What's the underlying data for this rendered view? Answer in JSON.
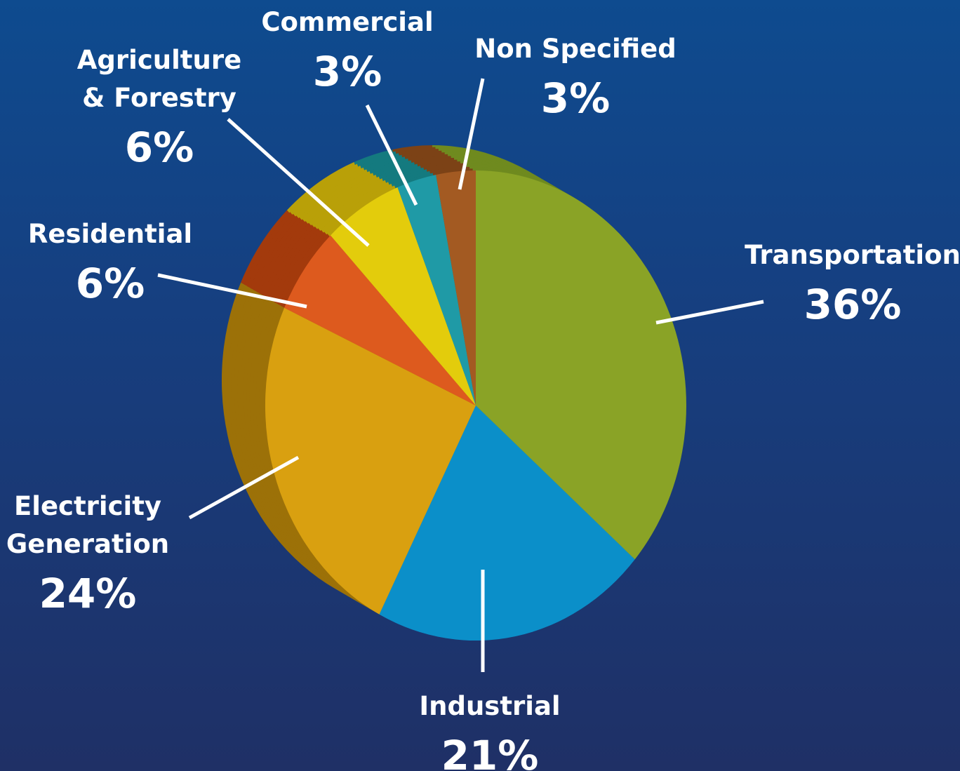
{
  "chart_data": {
    "type": "pie",
    "title": "",
    "slices": [
      {
        "label": "Transportation",
        "pct_label": "36%",
        "value": 36,
        "color": "#8aa326",
        "side": "#6f8a1f"
      },
      {
        "label": "Industrial",
        "pct_label": "21%",
        "value": 21,
        "color": "#0b8fc9",
        "side": "#0a72a3"
      },
      {
        "label": "Electricity Generation",
        "lines": [
          "Electricity",
          "Generation"
        ],
        "pct_label": "24%",
        "value": 24,
        "color": "#d9a010",
        "side": "#9c7108"
      },
      {
        "label": "Residential",
        "pct_label": "6%",
        "value": 6,
        "color": "#dd5a1e",
        "side": "#a33a0c"
      },
      {
        "label": "Agriculture & Forestry",
        "lines": [
          "Agriculture",
          "& Forestry"
        ],
        "pct_label": "6%",
        "value": 6,
        "color": "#e3cc0c",
        "side": "#b9a008"
      },
      {
        "label": "Commercial",
        "pct_label": "3%",
        "value": 3,
        "color": "#1f9aa6",
        "side": "#147a7f"
      },
      {
        "label": "Non Specified",
        "pct_label": "3%",
        "value": 3,
        "color": "#a35a22",
        "side": "#7c4216"
      }
    ]
  }
}
